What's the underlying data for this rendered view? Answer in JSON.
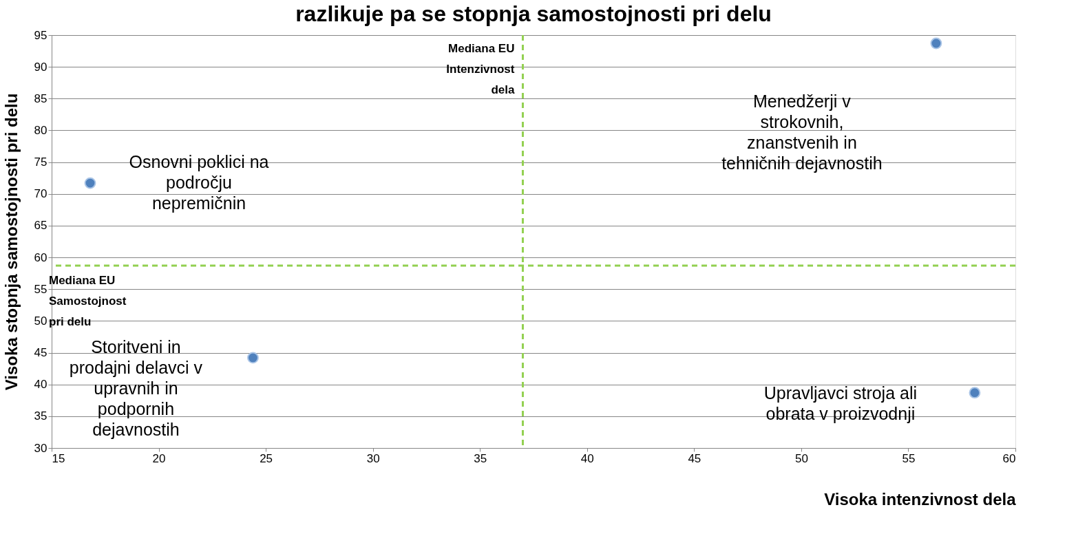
{
  "chart_data": {
    "type": "scatter",
    "title": "razlikuje pa se stopnja samostojnosti pri delu",
    "xlabel": "Visoka intenzivnost dela",
    "ylabel": "Visoka stopnja samostojnosti pri delu",
    "x": [
      16.8,
      24.4,
      56.3,
      58.1
    ],
    "series": [
      {
        "color": "#4f81bd",
        "values": [
          71.7,
          44.2,
          93.7,
          38.7
        ]
      }
    ],
    "xlim": [
      15,
      60
    ],
    "xticks": [
      15,
      20,
      25,
      30,
      35,
      40,
      45,
      50,
      55,
      60
    ],
    "ylim": [
      30,
      95
    ],
    "yticks": [
      30,
      35,
      40,
      45,
      50,
      55,
      60,
      65,
      70,
      75,
      80,
      85,
      90,
      95
    ],
    "grid": "y",
    "marker": "circle",
    "legend": false,
    "ref_lines": [
      {
        "axis": "x",
        "value": 37,
        "label": "Mediana EU Intenzivnost dela",
        "color": "#92d050",
        "line_style": "dashed"
      },
      {
        "axis": "y",
        "value": 58.7,
        "label": "Mediana EU Samostojnost pri delu",
        "color": "#92d050",
        "line_style": "dashed"
      }
    ],
    "annotations": [
      "Osnovni poklici na področju nepremičnin",
      "Storitveni in prodajni delavci v upravnih in podpornih dejavnostih",
      "Menedžerji v strokovnih, znanstvenih in tehničnih dejavnostih",
      "Upravljavci stroja ali obrata v proizvodnji"
    ]
  }
}
